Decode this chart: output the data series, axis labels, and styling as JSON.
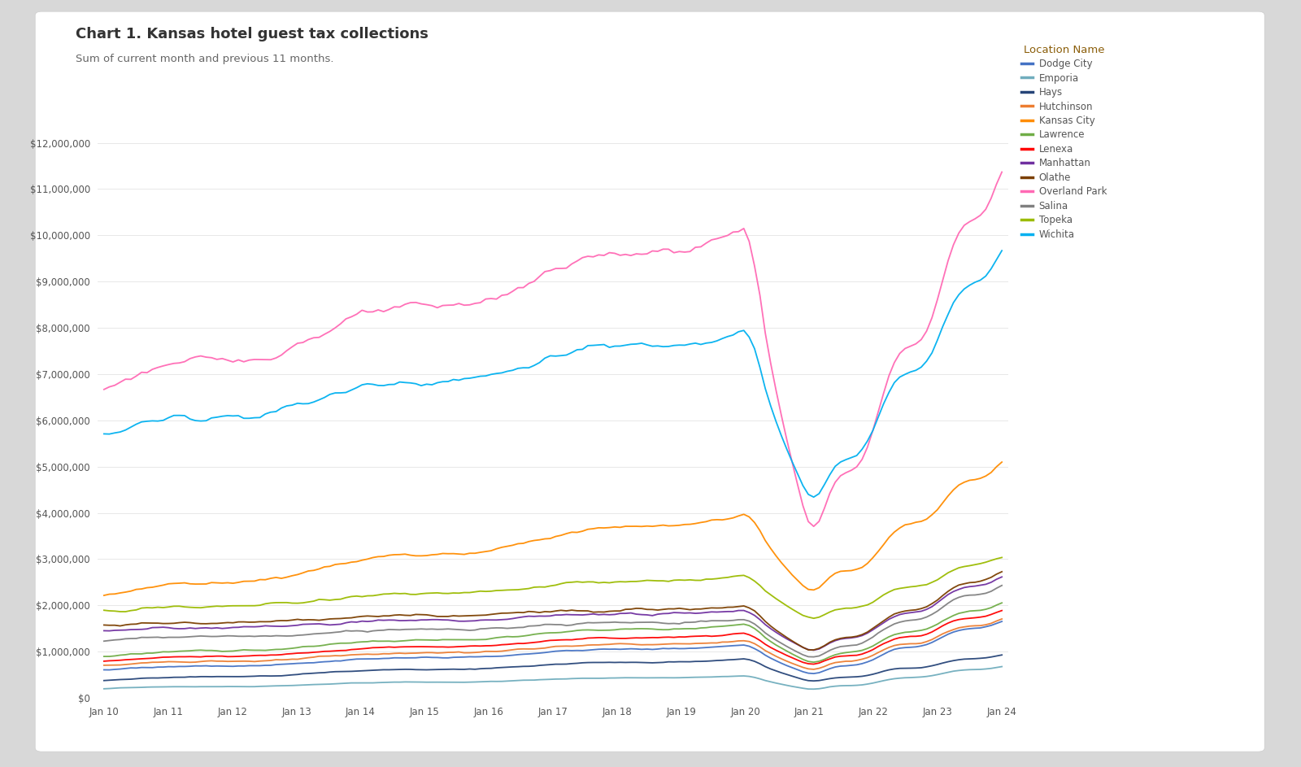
{
  "title": "Chart 1. Kansas hotel guest tax collections",
  "subtitle": "Sum of current month and previous 11 months.",
  "legend_title": "Location Name",
  "locations": [
    "Dodge City",
    "Emporia",
    "Hays",
    "Hutchinson",
    "Kansas City",
    "Lawrence",
    "Lenexa",
    "Manhattan",
    "Olathe",
    "Overland Park",
    "Salina",
    "Topeka",
    "Wichita"
  ],
  "colors": {
    "Dodge City": "#4472C4",
    "Emporia": "#70ADBD",
    "Hays": "#264478",
    "Hutchinson": "#ED7D31",
    "Kansas City": "#FF8C00",
    "Lawrence": "#70AD47",
    "Lenexa": "#FF0000",
    "Manhattan": "#7030A0",
    "Olathe": "#7B3F00",
    "Overland Park": "#FF69B4",
    "Salina": "#808080",
    "Topeka": "#9BBB00",
    "Wichita": "#00B0F0"
  },
  "xtick_labels": [
    "Jan 10",
    "Jan 11",
    "Jan 12",
    "Jan 13",
    "Jan 14",
    "Jan 15",
    "Jan 16",
    "Jan 17",
    "Jan 18",
    "Jan 19",
    "Jan 20",
    "Jan 21",
    "Jan 22",
    "Jan 23",
    "Jan 24"
  ],
  "ytick_labels": [
    "$0",
    "$1,000,000",
    "$2,000,000",
    "$3,000,000",
    "$4,000,000",
    "$5,000,000",
    "$6,000,000",
    "$7,000,000",
    "$8,000,000",
    "$9,000,000",
    "$10,000,000",
    "$11,000,000",
    "$12,000,000"
  ],
  "yticks": [
    0,
    1000000,
    2000000,
    3000000,
    4000000,
    5000000,
    6000000,
    7000000,
    8000000,
    9000000,
    10000000,
    11000000,
    12000000
  ],
  "ylim": [
    0,
    12600000
  ],
  "outer_bg": "#d8d8d8",
  "card_bg": "#ffffff",
  "title_color": "#333333",
  "subtitle_color": "#666666",
  "tick_color": "#555555",
  "grid_color": "#e8e8e8",
  "legend_title_color": "#8B5E0A"
}
